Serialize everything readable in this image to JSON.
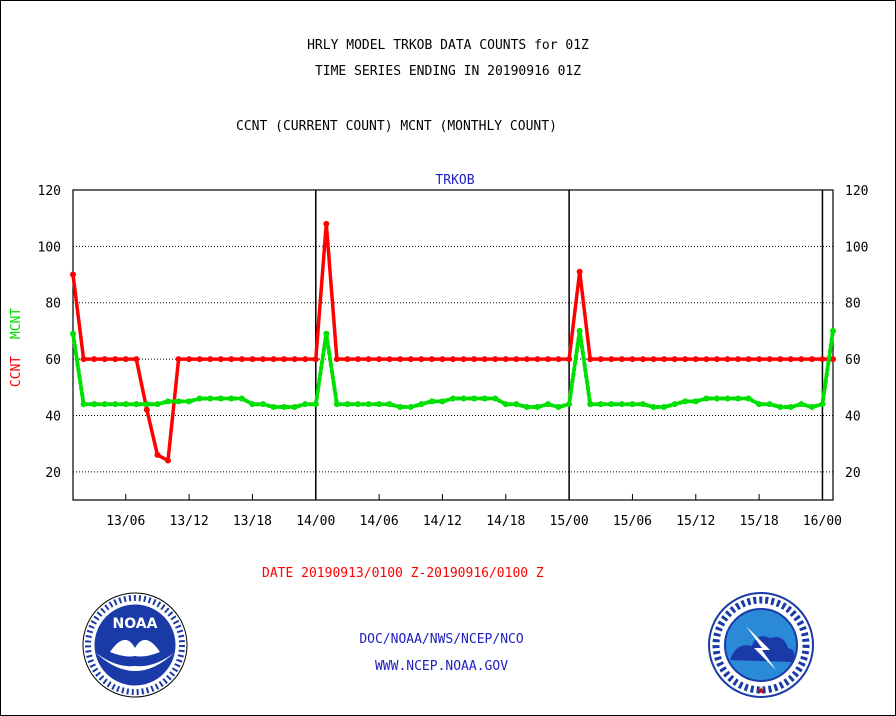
{
  "header": {
    "title_line1": "HRLY MODEL TRKOB DATA COUNTS for 01Z",
    "title_line2": "TIME SERIES ENDING IN 20190916 01Z",
    "subtitle": "CCNT (CURRENT COUNT) MCNT (MONTHLY COUNT)"
  },
  "footer": {
    "date_range": "DATE 20190913/0100 Z-20190916/0100 Z",
    "org_path": "DOC/NOAA/NWS/NCEP/NCO",
    "website": "WWW.NCEP.NOAA.GOV"
  },
  "logos": {
    "left": "NOAA",
    "right": "NATIONAL WEATHER SERVICE"
  },
  "chart_data": {
    "type": "line",
    "title": "TRKOB",
    "ylabel_ccnt": "CCNT",
    "ylabel_mcnt": "MCNT",
    "ylim": [
      10,
      120
    ],
    "yticks": [
      20,
      40,
      60,
      80,
      100,
      120
    ],
    "x_unit": "hours from 20190913/0100 Z",
    "xlim": [
      0,
      72
    ],
    "xticks": [
      {
        "x": 5,
        "label": "13/06"
      },
      {
        "x": 11,
        "label": "13/12"
      },
      {
        "x": 17,
        "label": "13/18"
      },
      {
        "x": 23,
        "label": "14/00"
      },
      {
        "x": 29,
        "label": "14/06"
      },
      {
        "x": 35,
        "label": "14/12"
      },
      {
        "x": 41,
        "label": "14/18"
      },
      {
        "x": 47,
        "label": "15/00"
      },
      {
        "x": 53,
        "label": "15/06"
      },
      {
        "x": 59,
        "label": "15/12"
      },
      {
        "x": 65,
        "label": "15/18"
      },
      {
        "x": 71,
        "label": "16/00"
      }
    ],
    "day_boundaries": [
      23,
      47,
      71
    ],
    "grid": "horizontal dotted",
    "series": [
      {
        "name": "CCNT",
        "color": "#ff0000",
        "style": "solid",
        "values": [
          90,
          60,
          60,
          60,
          60,
          60,
          60,
          42,
          26,
          24,
          60,
          60,
          60,
          60,
          60,
          60,
          60,
          60,
          60,
          60,
          60,
          60,
          60,
          60,
          108,
          60,
          60,
          60,
          60,
          60,
          60,
          60,
          60,
          60,
          60,
          60,
          60,
          60,
          60,
          60,
          60,
          60,
          60,
          60,
          60,
          60,
          60,
          60,
          91,
          60,
          60,
          60,
          60,
          60,
          60,
          60,
          60,
          60,
          60,
          60,
          60,
          60,
          60,
          60,
          60,
          60,
          60,
          60,
          60,
          60,
          60,
          60,
          60
        ]
      },
      {
        "name": "MCNT",
        "color": "#00e000",
        "style": "dotted",
        "values": [
          69,
          44,
          44,
          44,
          44,
          44,
          44,
          44,
          44,
          45,
          45,
          45,
          46,
          46,
          46,
          46,
          46,
          44,
          44,
          43,
          43,
          43,
          44,
          44,
          69,
          44,
          44,
          44,
          44,
          44,
          44,
          43,
          43,
          44,
          45,
          45,
          46,
          46,
          46,
          46,
          46,
          44,
          44,
          43,
          43,
          44,
          43,
          44,
          70,
          44,
          44,
          44,
          44,
          44,
          44,
          43,
          43,
          44,
          45,
          45,
          46,
          46,
          46,
          46,
          46,
          44,
          44,
          43,
          43,
          44,
          43,
          44,
          70
        ]
      }
    ]
  }
}
